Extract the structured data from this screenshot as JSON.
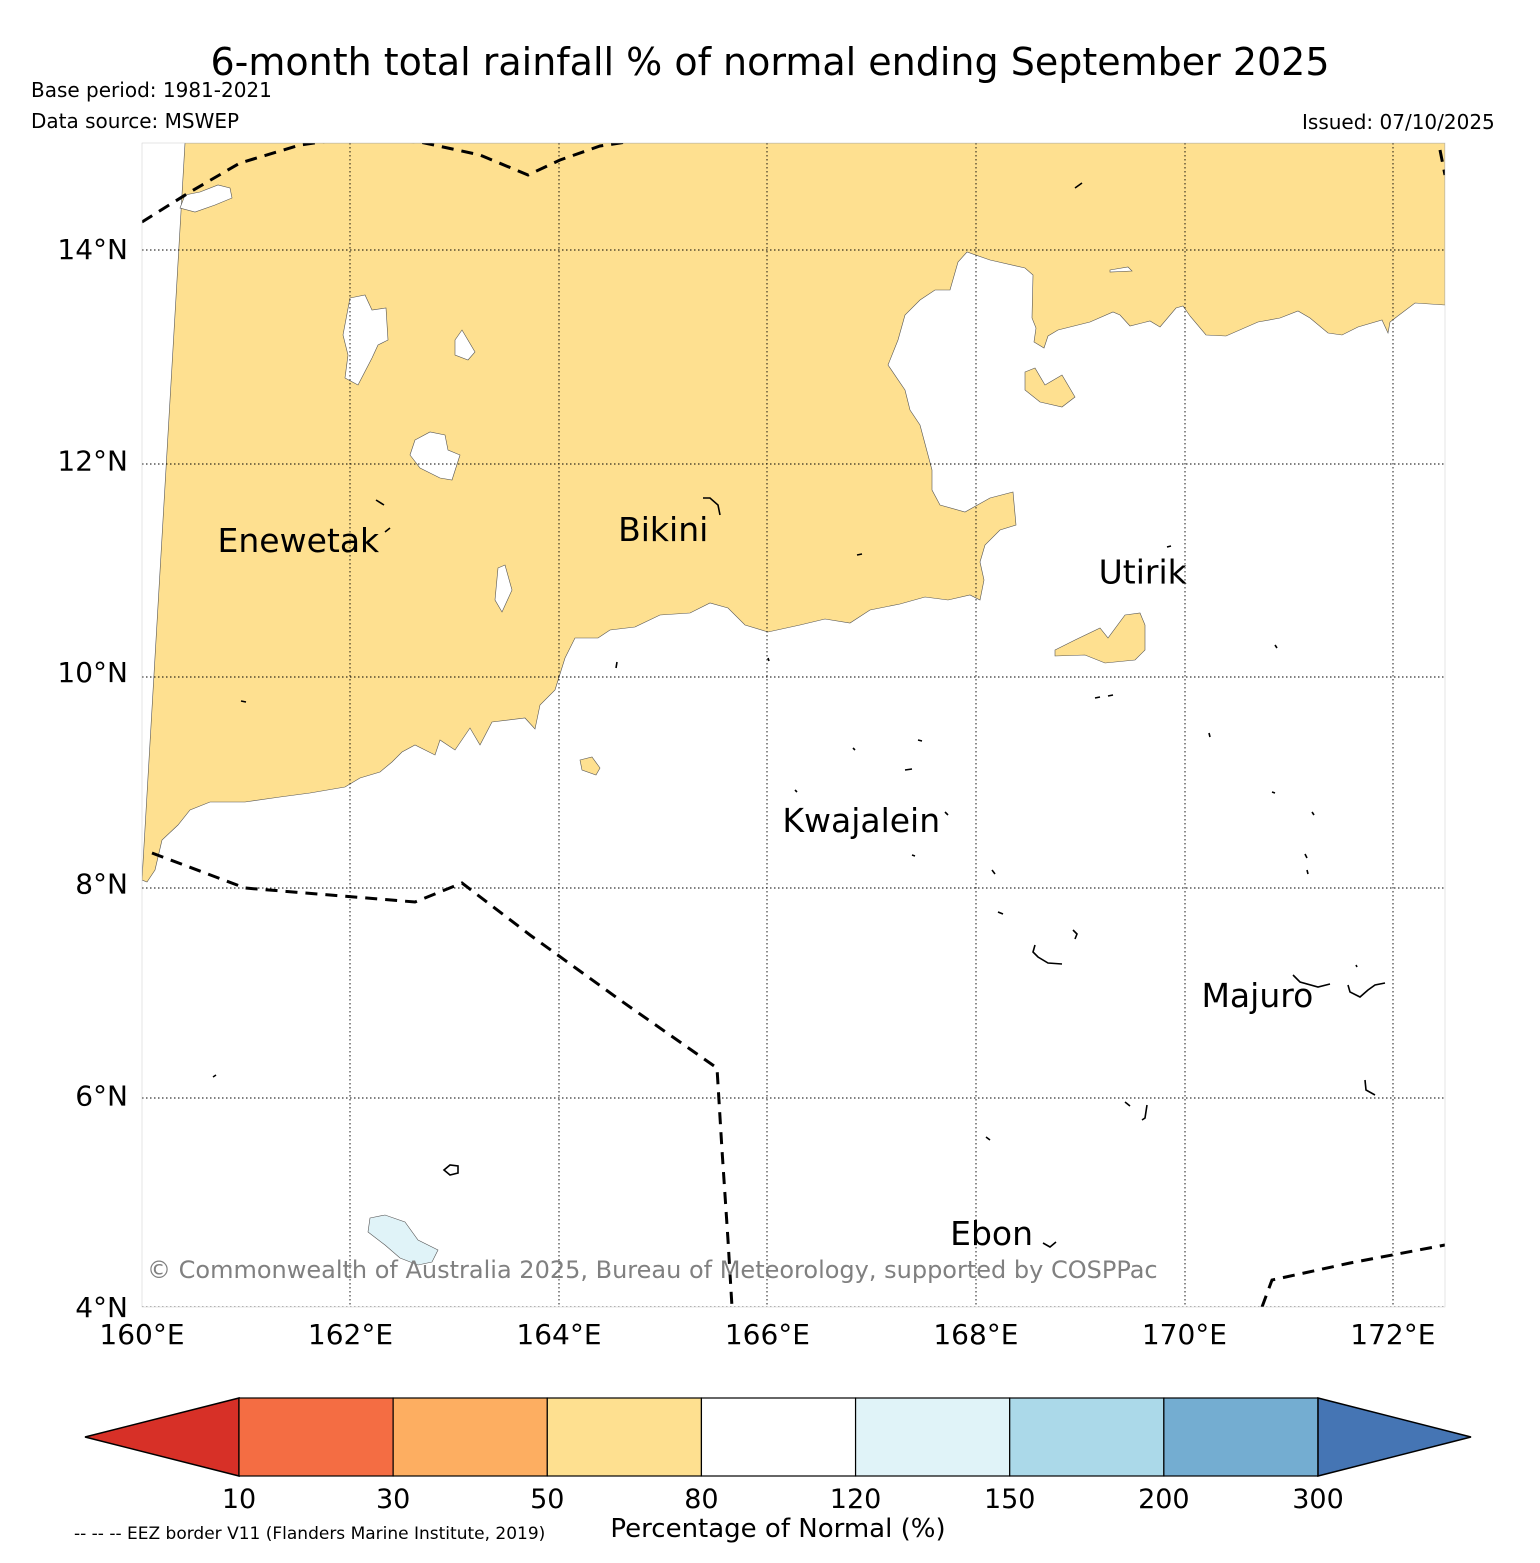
{
  "title": "6-month total rainfall % of normal ending September 2025",
  "base_period": "Base period: 1981-2021",
  "data_source": "Data source: MSWEP",
  "issued": "Issued: 07/10/2025",
  "copyright": "© Commonwealth of Australia 2025, Bureau of Meteorology, supported by COSPPac",
  "eez_note": "-- -- -- EEZ border V11 (Flanders Marine Institute, 2019)",
  "colorbar_label": "Percentage of Normal (%)",
  "map": {
    "lon_min": 160,
    "lon_max": 172.5,
    "lat_min": 4,
    "lat_max": 15,
    "lon_ticks": [
      {
        "value": 160,
        "label": "160°E"
      },
      {
        "value": 162,
        "label": "162°E"
      },
      {
        "value": 164,
        "label": "164°E"
      },
      {
        "value": 166,
        "label": "166°E"
      },
      {
        "value": 168,
        "label": "168°E"
      },
      {
        "value": 170,
        "label": "170°E"
      },
      {
        "value": 172,
        "label": "172°E"
      }
    ],
    "lat_ticks": [
      {
        "value": 4,
        "label": "4°N"
      },
      {
        "value": 6,
        "label": "6°N"
      },
      {
        "value": 8,
        "label": "8°N"
      },
      {
        "value": 10,
        "label": "10°N"
      },
      {
        "value": 12,
        "label": "12°N"
      },
      {
        "value": 14,
        "label": "14°N"
      }
    ],
    "places": [
      {
        "name": "Enewetak",
        "lon": 161.5,
        "lat": 11.25
      },
      {
        "name": "Bikini",
        "lon": 165.0,
        "lat": 11.35
      },
      {
        "name": "Utirik",
        "lon": 169.6,
        "lat": 10.95
      },
      {
        "name": "Kwajalein",
        "lon": 166.9,
        "lat": 8.6
      },
      {
        "name": "Majuro",
        "lon": 170.7,
        "lat": 6.95
      },
      {
        "name": "Ebon",
        "lon": 168.15,
        "lat": 4.7
      }
    ]
  },
  "colorbar": {
    "boundaries": [
      "10",
      "30",
      "50",
      "80",
      "120",
      "150",
      "200",
      "300"
    ],
    "under_color": "#d73027",
    "over_color": "#4575b4",
    "bin_colors": [
      "#f46d43",
      "#fdae61",
      "#fee090",
      "#ffffff",
      "#e0f3f8",
      "#abd9e9",
      "#74add1"
    ]
  },
  "legend_colors": {
    "dry": "#fee090",
    "normal": "#ffffff",
    "wet": "#e0f3f8"
  }
}
